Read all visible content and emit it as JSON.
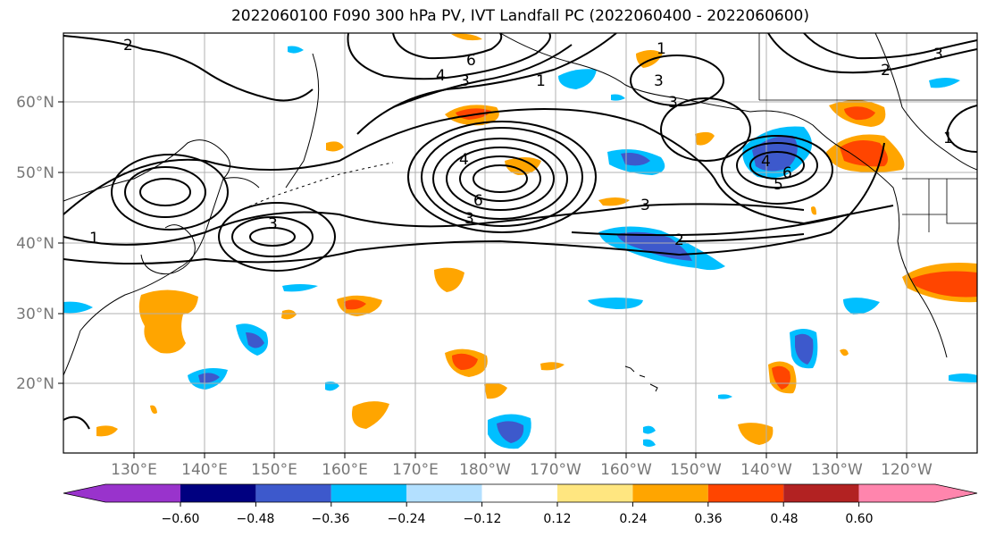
{
  "title": "2022060100 F090 300 hPa PV, IVT Landfall PC (2022060400 - 2022060600)",
  "map": {
    "lat_labels": [
      "60°N",
      "50°N",
      "40°N",
      "30°N",
      "20°N"
    ],
    "lat_values": [
      60,
      50,
      40,
      30,
      20
    ],
    "lon_labels": [
      "130°E",
      "140°E",
      "150°E",
      "160°E",
      "170°E",
      "180°W",
      "170°W",
      "160°W",
      "150°W",
      "140°W",
      "130°W",
      "120°W"
    ],
    "lon_values": [
      130,
      140,
      150,
      160,
      170,
      180,
      190,
      200,
      210,
      220,
      230,
      240
    ],
    "grid": true
  },
  "contour_labels": [
    "2",
    "4",
    "3",
    "6",
    "1",
    "3",
    "3",
    "4",
    "6",
    "3",
    "3",
    "4",
    "6",
    "5",
    "2",
    "1",
    "2",
    "3",
    "3",
    "1",
    "1"
  ],
  "colorbar": {
    "tick_labels": [
      "−0.60",
      "−0.48",
      "−0.36",
      "−0.24",
      "−0.12",
      "0.12",
      "0.24",
      "0.36",
      "0.48",
      "0.60"
    ],
    "colors": [
      "#9933cc",
      "#000080",
      "#3d59cc",
      "#00bfff",
      "#b3e0ff",
      "#ffffff",
      "#ffe680",
      "#ffa500",
      "#ff4500",
      "#b22222",
      "#ff85ad"
    ]
  }
}
